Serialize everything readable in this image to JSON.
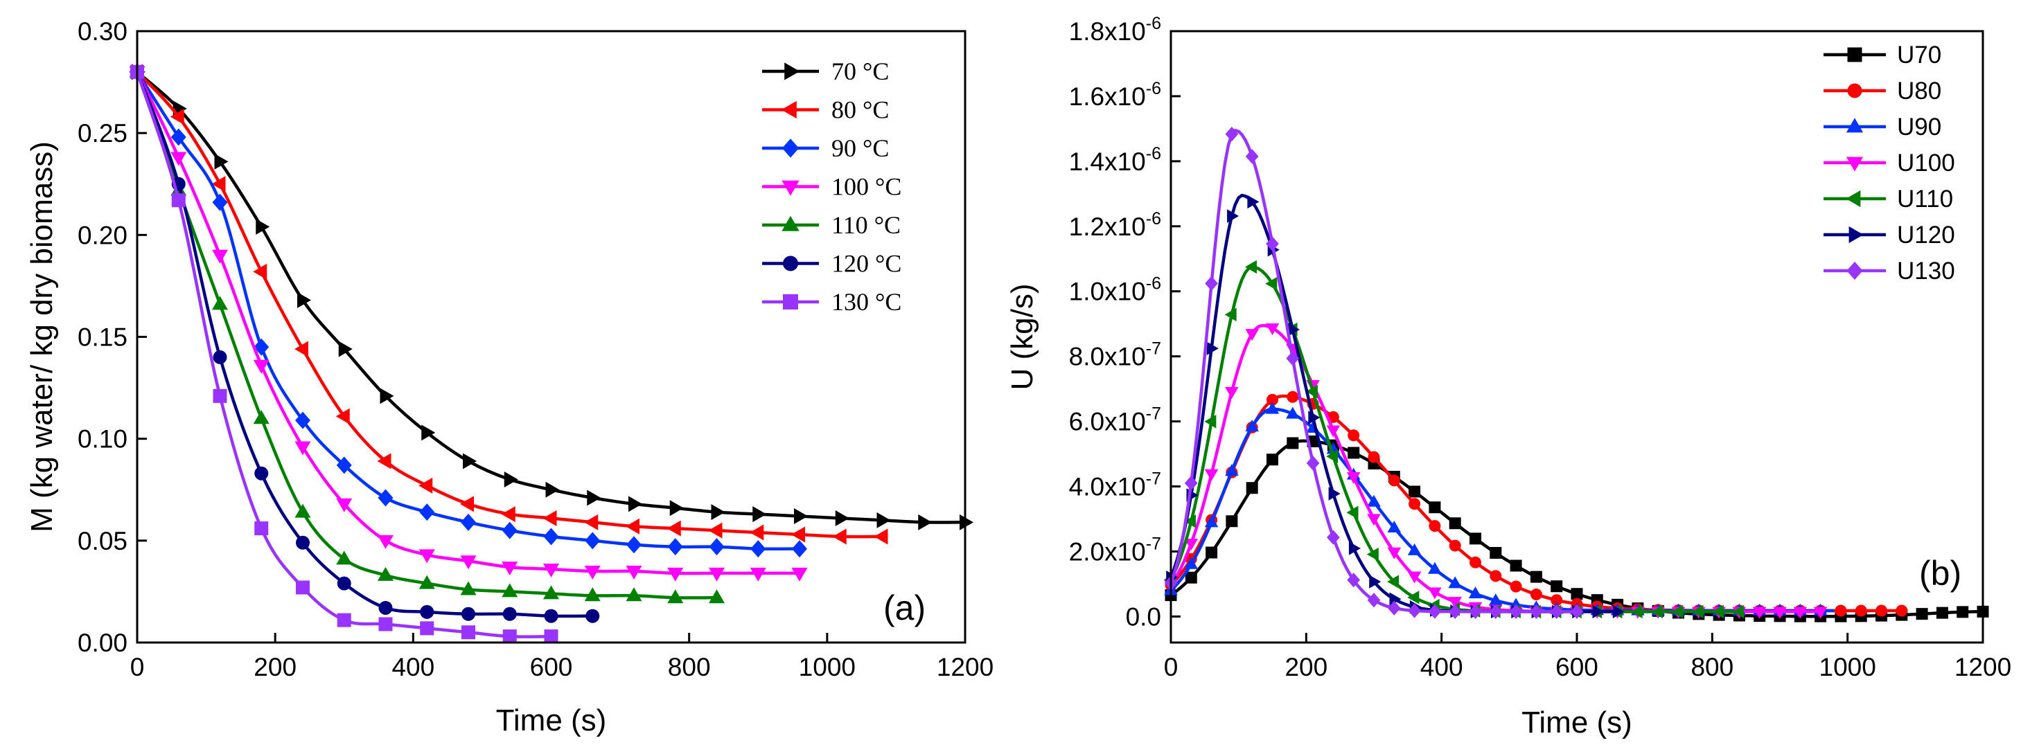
{
  "chart_data": [
    {
      "id": "a",
      "type": "line",
      "panel_label": "(a)",
      "xlabel": "Time (s)",
      "ylabel": "M (kg water/ kg dry biomass)",
      "xlim": [
        0,
        1200
      ],
      "ylim": [
        0,
        0.3
      ],
      "xticks": [
        "0",
        "200",
        "400",
        "600",
        "800",
        "1000",
        "1200"
      ],
      "yticks": [
        "0.00",
        "0.05",
        "0.10",
        "0.15",
        "0.20",
        "0.25",
        "0.30"
      ],
      "legend_position": "top-right",
      "series": [
        {
          "name": "70 °C",
          "color": "#000000",
          "marker": "triangle-right",
          "x": [
            0,
            60,
            120,
            180,
            240,
            300,
            360,
            420,
            480,
            540,
            600,
            660,
            720,
            780,
            840,
            900,
            960,
            1020,
            1080,
            1140,
            1200
          ],
          "y": [
            0.28,
            0.262,
            0.236,
            0.204,
            0.168,
            0.144,
            0.121,
            0.103,
            0.089,
            0.08,
            0.075,
            0.071,
            0.068,
            0.066,
            0.064,
            0.063,
            0.062,
            0.061,
            0.06,
            0.059,
            0.059
          ]
        },
        {
          "name": "80 °C",
          "color": "#ff0000",
          "marker": "triangle-left",
          "x": [
            0,
            60,
            120,
            180,
            240,
            300,
            360,
            420,
            480,
            540,
            600,
            660,
            720,
            780,
            840,
            900,
            960,
            1020,
            1080
          ],
          "y": [
            0.28,
            0.258,
            0.225,
            0.182,
            0.144,
            0.111,
            0.089,
            0.077,
            0.068,
            0.063,
            0.061,
            0.059,
            0.057,
            0.056,
            0.055,
            0.054,
            0.053,
            0.052,
            0.052
          ]
        },
        {
          "name": "90 °C",
          "color": "#0033ff",
          "marker": "diamond",
          "x": [
            0,
            60,
            120,
            180,
            240,
            300,
            360,
            420,
            480,
            540,
            600,
            660,
            720,
            780,
            840,
            900,
            960
          ],
          "y": [
            0.28,
            0.248,
            0.216,
            0.145,
            0.109,
            0.087,
            0.071,
            0.064,
            0.059,
            0.055,
            0.052,
            0.05,
            0.048,
            0.047,
            0.047,
            0.046,
            0.046
          ]
        },
        {
          "name": "100 °C",
          "color": "#ff00ff",
          "marker": "triangle-down",
          "x": [
            0,
            60,
            120,
            180,
            240,
            300,
            360,
            420,
            480,
            540,
            600,
            660,
            720,
            780,
            840,
            900,
            960
          ],
          "y": [
            0.28,
            0.238,
            0.19,
            0.136,
            0.096,
            0.068,
            0.05,
            0.043,
            0.04,
            0.037,
            0.036,
            0.035,
            0.035,
            0.034,
            0.034,
            0.034,
            0.034
          ]
        },
        {
          "name": "110 °C",
          "color": "#008000",
          "marker": "triangle-up",
          "x": [
            0,
            60,
            120,
            180,
            240,
            300,
            360,
            420,
            480,
            540,
            600,
            660,
            720,
            780,
            840
          ],
          "y": [
            0.28,
            0.222,
            0.166,
            0.11,
            0.064,
            0.041,
            0.033,
            0.029,
            0.026,
            0.025,
            0.024,
            0.023,
            0.023,
            0.022,
            0.022
          ]
        },
        {
          "name": "120 °C",
          "color": "#000080",
          "marker": "circle",
          "x": [
            0,
            60,
            120,
            180,
            240,
            300,
            360,
            420,
            480,
            540,
            600,
            660
          ],
          "y": [
            0.28,
            0.225,
            0.14,
            0.083,
            0.049,
            0.029,
            0.017,
            0.015,
            0.014,
            0.014,
            0.013,
            0.013
          ]
        },
        {
          "name": "130 °C",
          "color": "#9933ff",
          "marker": "square",
          "x": [
            0,
            60,
            120,
            180,
            240,
            300,
            360,
            420,
            480,
            540,
            600
          ],
          "y": [
            0.28,
            0.217,
            0.121,
            0.056,
            0.027,
            0.011,
            0.009,
            0.007,
            0.005,
            0.003,
            0.003
          ]
        }
      ]
    },
    {
      "id": "b",
      "type": "line",
      "panel_label": "(b)",
      "xlabel": "Time (s)",
      "ylabel": "U (kg/s)",
      "xlim": [
        0,
        1200
      ],
      "ylim": [
        -8e-08,
        1.8e-06
      ],
      "xticks": [
        "0",
        "200",
        "400",
        "600",
        "800",
        "1000",
        "1200"
      ],
      "yticks": [
        {
          "value": 0,
          "base": "0.0",
          "exp": ""
        },
        {
          "value": 2e-07,
          "base": "2.0x10",
          "exp": "-7"
        },
        {
          "value": 4e-07,
          "base": "4.0x10",
          "exp": "-7"
        },
        {
          "value": 6e-07,
          "base": "6.0x10",
          "exp": "-7"
        },
        {
          "value": 8e-07,
          "base": "8.0x10",
          "exp": "-7"
        },
        {
          "value": 1e-06,
          "base": "1.0x10",
          "exp": "-6"
        },
        {
          "value": 1.2e-06,
          "base": "1.2x10",
          "exp": "-6"
        },
        {
          "value": 1.4e-06,
          "base": "1.4x10",
          "exp": "-6"
        },
        {
          "value": 1.6e-06,
          "base": "1.6x10",
          "exp": "-6"
        },
        {
          "value": 1.8e-06,
          "base": "1.8x10",
          "exp": "-6"
        }
      ],
      "legend_position": "top-right",
      "series": [
        {
          "name": "U70",
          "color": "#000000",
          "marker": "square",
          "x_end": 1200,
          "peaks": [
            {
              "mu": 195,
              "sL": 95,
              "sR": 200,
              "A": 5.4e-07,
              "b": 0
            },
            {
              "mu": 1200,
              "sL": 80,
              "sR": 80,
              "A": 1.5e-08,
              "b": 0
            }
          ]
        },
        {
          "name": "U80",
          "color": "#ff0000",
          "marker": "circle",
          "x_end": 1080,
          "peaks": [
            {
              "mu": 165,
              "sL": 80,
              "sR": 165,
              "A": 6.6e-07,
              "b": 1.8e-08
            }
          ]
        },
        {
          "name": "U90",
          "color": "#0033ff",
          "marker": "triangle-up",
          "x_end": 980,
          "peaks": [
            {
              "mu": 150,
              "sL": 70,
              "sR": 135,
              "A": 6.2e-07,
              "b": 1.8e-08
            }
          ]
        },
        {
          "name": "U100",
          "color": "#ff00ff",
          "marker": "triangle-down",
          "x_end": 960,
          "peaks": [
            {
              "mu": 135,
              "sL": 62,
              "sR": 110,
              "A": 8.8e-07,
              "b": 1.5e-08
            }
          ]
        },
        {
          "name": "U110",
          "color": "#008000",
          "marker": "triangle-left",
          "x_end": 840,
          "peaks": [
            {
              "mu": 120,
              "sL": 55,
              "sR": 95,
              "A": 1.06e-06,
              "b": 1.5e-08
            }
          ]
        },
        {
          "name": "U120",
          "color": "#000080",
          "marker": "triangle-right",
          "x_end": 660,
          "peaks": [
            {
              "mu": 105,
              "sL": 47,
              "sR": 85,
              "A": 1.28e-06,
              "b": 1.5e-08
            }
          ]
        },
        {
          "name": "U130",
          "color": "#9933ff",
          "marker": "diamond",
          "x_end": 600,
          "peaks": [
            {
              "mu": 95,
              "sL": 40,
              "sR": 75,
              "A": 1.48e-06,
              "b": 1.5e-08
            }
          ]
        }
      ]
    }
  ]
}
